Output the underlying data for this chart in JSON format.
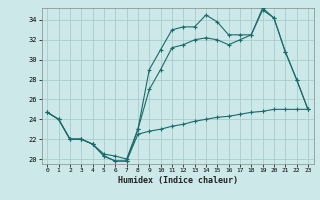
{
  "xlabel": "Humidex (Indice chaleur)",
  "background_color": "#cce8e8",
  "grid_color": "#aacccc",
  "line_color": "#1a6b6b",
  "xlim": [
    -0.5,
    23.5
  ],
  "ylim": [
    19.5,
    35.2
  ],
  "xticks": [
    0,
    1,
    2,
    3,
    4,
    5,
    6,
    7,
    8,
    9,
    10,
    11,
    12,
    13,
    14,
    15,
    16,
    17,
    18,
    19,
    20,
    21,
    22,
    23
  ],
  "yticks": [
    20,
    22,
    24,
    26,
    28,
    30,
    32,
    34
  ],
  "line1_x": [
    0,
    1,
    2,
    3,
    4,
    5,
    6,
    7,
    8,
    9,
    10,
    11,
    12,
    13,
    14,
    15,
    16,
    17,
    18,
    19,
    20,
    21,
    22,
    23
  ],
  "line1_y": [
    24.7,
    24.0,
    22.0,
    22.0,
    21.5,
    20.3,
    19.8,
    19.8,
    23.0,
    29.0,
    31.0,
    33.0,
    33.3,
    33.3,
    34.5,
    33.8,
    32.5,
    32.5,
    32.5,
    35.0,
    34.2,
    30.8,
    28.0,
    25.0
  ],
  "line2_x": [
    0,
    1,
    2,
    3,
    4,
    5,
    6,
    7,
    8,
    9,
    10,
    11,
    12,
    13,
    14,
    15,
    16,
    17,
    18,
    19,
    20,
    21,
    22,
    23
  ],
  "line2_y": [
    24.7,
    24.0,
    22.0,
    22.0,
    21.5,
    20.5,
    20.3,
    20.0,
    23.0,
    27.0,
    29.0,
    31.2,
    31.5,
    32.0,
    32.2,
    32.0,
    31.5,
    32.0,
    32.5,
    35.2,
    34.2,
    30.8,
    28.0,
    25.0
  ],
  "line3_x": [
    0,
    1,
    2,
    3,
    4,
    5,
    6,
    7,
    8,
    9,
    10,
    11,
    12,
    13,
    14,
    15,
    16,
    17,
    18,
    19,
    20,
    21,
    22,
    23
  ],
  "line3_y": [
    24.7,
    24.0,
    22.0,
    22.0,
    21.5,
    20.3,
    19.8,
    19.8,
    22.5,
    22.8,
    23.0,
    23.3,
    23.5,
    23.8,
    24.0,
    24.2,
    24.3,
    24.5,
    24.7,
    24.8,
    25.0,
    25.0,
    25.0,
    25.0
  ]
}
